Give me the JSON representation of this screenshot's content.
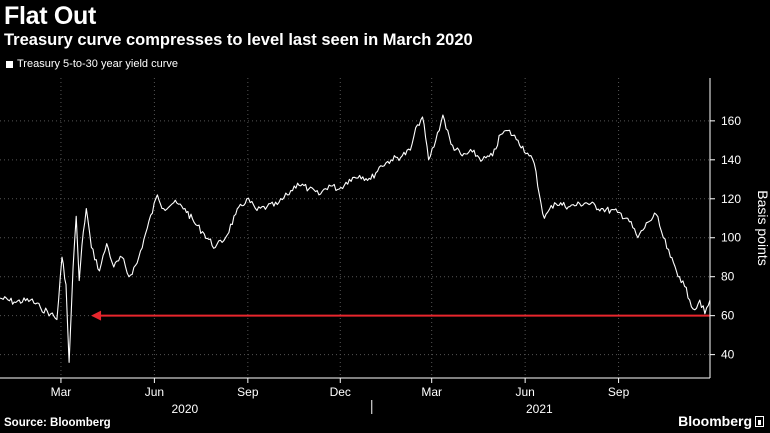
{
  "header": {
    "title": "Flat Out",
    "subtitle": "Treasury curve compresses to level last seen in March 2020"
  },
  "legend": {
    "label": "Treasury 5-to-30 year yield curve"
  },
  "footer": {
    "source": "Source: Bloomberg",
    "brand": "Bloomberg"
  },
  "colors": {
    "background": "#000000",
    "line": "#ffffff",
    "arrow": "#e8262d",
    "grid": "#555555"
  },
  "chart_data": {
    "type": "line",
    "ylabel": "Basis points",
    "ylim": [
      28,
      182
    ],
    "yticks": [
      40,
      60,
      80,
      100,
      120,
      140,
      160
    ],
    "x_month_ticks": [
      "Mar",
      "Jun",
      "Sep",
      "Dec",
      "Mar",
      "Jun",
      "Sep"
    ],
    "x_year_labels": [
      "2020",
      "2021"
    ],
    "xrange": [
      "2020-01-01",
      "2021-11-30"
    ],
    "series": [
      {
        "name": "Treasury 5-to-30 year yield curve",
        "points": [
          [
            "2020-01-01",
            69
          ],
          [
            "2020-01-15",
            67
          ],
          [
            "2020-01-31",
            68
          ],
          [
            "2020-02-10",
            64
          ],
          [
            "2020-02-20",
            61
          ],
          [
            "2020-02-26",
            58
          ],
          [
            "2020-03-02",
            90
          ],
          [
            "2020-03-06",
            76
          ],
          [
            "2020-03-09",
            36
          ],
          [
            "2020-03-11",
            60
          ],
          [
            "2020-03-13",
            85
          ],
          [
            "2020-03-16",
            111
          ],
          [
            "2020-03-19",
            78
          ],
          [
            "2020-03-23",
            103
          ],
          [
            "2020-03-26",
            115
          ],
          [
            "2020-03-31",
            95
          ],
          [
            "2020-04-08",
            83
          ],
          [
            "2020-04-15",
            97
          ],
          [
            "2020-04-22",
            85
          ],
          [
            "2020-04-30",
            90
          ],
          [
            "2020-05-07",
            80
          ],
          [
            "2020-05-15",
            87
          ],
          [
            "2020-05-25",
            105
          ],
          [
            "2020-06-04",
            122
          ],
          [
            "2020-06-10",
            115
          ],
          [
            "2020-06-20",
            118
          ],
          [
            "2020-07-01",
            115
          ],
          [
            "2020-07-10",
            108
          ],
          [
            "2020-07-20",
            102
          ],
          [
            "2020-07-31",
            95
          ],
          [
            "2020-08-10",
            100
          ],
          [
            "2020-08-20",
            112
          ],
          [
            "2020-08-31",
            120
          ],
          [
            "2020-09-10",
            114
          ],
          [
            "2020-09-20",
            116
          ],
          [
            "2020-09-30",
            117
          ],
          [
            "2020-10-10",
            122
          ],
          [
            "2020-10-20",
            128
          ],
          [
            "2020-10-31",
            125
          ],
          [
            "2020-11-10",
            122
          ],
          [
            "2020-11-20",
            127
          ],
          [
            "2020-11-30",
            125
          ],
          [
            "2020-12-10",
            130
          ],
          [
            "2020-12-20",
            132
          ],
          [
            "2020-12-31",
            130
          ],
          [
            "2021-01-10",
            137
          ],
          [
            "2021-01-20",
            140
          ],
          [
            "2021-01-31",
            142
          ],
          [
            "2021-02-08",
            145
          ],
          [
            "2021-02-15",
            158
          ],
          [
            "2021-02-20",
            162
          ],
          [
            "2021-02-26",
            140
          ],
          [
            "2021-03-05",
            150
          ],
          [
            "2021-03-12",
            163
          ],
          [
            "2021-03-20",
            148
          ],
          [
            "2021-03-31",
            142
          ],
          [
            "2021-04-10",
            144
          ],
          [
            "2021-04-20",
            140
          ],
          [
            "2021-04-30",
            142
          ],
          [
            "2021-05-08",
            153
          ],
          [
            "2021-05-15",
            155
          ],
          [
            "2021-05-25",
            150
          ],
          [
            "2021-06-05",
            142
          ],
          [
            "2021-06-10",
            138
          ],
          [
            "2021-06-15",
            122
          ],
          [
            "2021-06-20",
            110
          ],
          [
            "2021-06-30",
            118
          ],
          [
            "2021-07-15",
            116
          ],
          [
            "2021-07-31",
            118
          ],
          [
            "2021-08-15",
            115
          ],
          [
            "2021-08-31",
            113
          ],
          [
            "2021-09-10",
            110
          ],
          [
            "2021-09-20",
            100
          ],
          [
            "2021-09-30",
            108
          ],
          [
            "2021-10-08",
            112
          ],
          [
            "2021-10-15",
            100
          ],
          [
            "2021-10-22",
            90
          ],
          [
            "2021-10-31",
            80
          ],
          [
            "2021-11-05",
            75
          ],
          [
            "2021-11-10",
            68
          ],
          [
            "2021-11-15",
            63
          ],
          [
            "2021-11-20",
            68
          ],
          [
            "2021-11-25",
            61
          ],
          [
            "2021-11-30",
            68
          ]
        ]
      }
    ],
    "annotation": {
      "type": "arrow",
      "value": 60,
      "from": "2021-11-30",
      "to": "2020-03-09"
    }
  }
}
